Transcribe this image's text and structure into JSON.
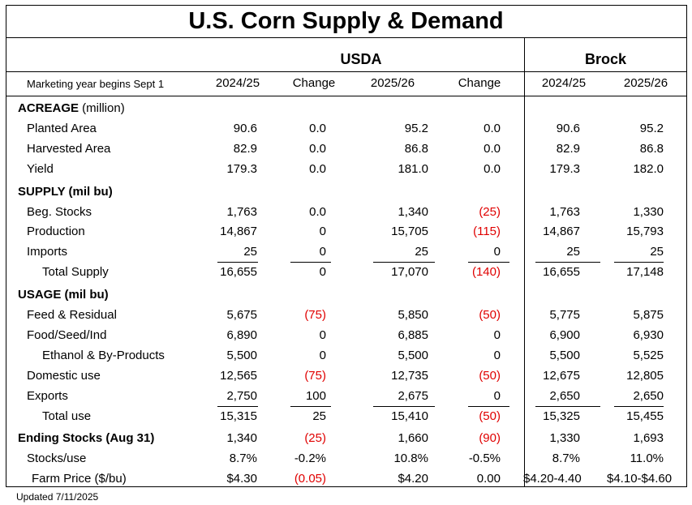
{
  "title": "U.S. Corn Supply & Demand",
  "groups": {
    "usda": "USDA",
    "brock": "Brock"
  },
  "header": {
    "label": "Marketing year begins Sept 1",
    "columns": [
      "2024/25",
      "Change",
      "2025/26",
      "Change",
      "2024/25",
      "2025/26"
    ]
  },
  "rows": [
    {
      "label": "ACREAGE",
      "unit": " (million)",
      "type": "section"
    },
    {
      "label": "Planted Area",
      "type": "item",
      "values": [
        "90.6",
        "0.0",
        "95.2",
        "0.0",
        "90.6",
        "95.2"
      ]
    },
    {
      "label": "Harvested Area",
      "type": "item",
      "values": [
        "82.9",
        "0.0",
        "86.8",
        "0.0",
        "82.9",
        "86.8"
      ]
    },
    {
      "label": "Yield",
      "type": "item",
      "values": [
        "179.3",
        "0.0",
        "181.0",
        "0.0",
        "179.3",
        "182.0"
      ]
    },
    {
      "label": "SUPPLY (mil bu)",
      "unit": "",
      "type": "section"
    },
    {
      "label": "Beg. Stocks",
      "type": "item",
      "values": [
        "1,763",
        "0.0",
        "1,340",
        "(25)",
        "1,763",
        "1,330"
      ]
    },
    {
      "label": "Production",
      "type": "item",
      "values": [
        "14,867",
        "0",
        "15,705",
        "(115)",
        "14,867",
        "15,793"
      ]
    },
    {
      "label": "Imports",
      "type": "item",
      "underline": true,
      "values": [
        "25",
        "0",
        "25",
        "0",
        "25",
        "25"
      ]
    },
    {
      "label": "Total Supply",
      "type": "total",
      "values": [
        "16,655",
        "0",
        "17,070",
        "(140)",
        "16,655",
        "17,148"
      ]
    },
    {
      "label": "USAGE (mil bu)",
      "unit": "",
      "type": "section"
    },
    {
      "label": "Feed & Residual",
      "type": "item",
      "values": [
        "5,675",
        "(75)",
        "5,850",
        "(50)",
        "5,775",
        "5,875"
      ]
    },
    {
      "label": "Food/Seed/Ind",
      "type": "item",
      "values": [
        "6,890",
        "0",
        "6,885",
        "0",
        "6,900",
        "6,930"
      ]
    },
    {
      "label": "Ethanol & By-Products",
      "type": "sub",
      "values": [
        "5,500",
        "0",
        "5,500",
        "0",
        "5,500",
        "5,525"
      ]
    },
    {
      "label": "Domestic use",
      "type": "item",
      "values": [
        "12,565",
        "(75)",
        "12,735",
        "(50)",
        "12,675",
        "12,805"
      ]
    },
    {
      "label": "Exports",
      "type": "item",
      "underline": true,
      "values": [
        "2,750",
        "100",
        "2,675",
        "0",
        "2,650",
        "2,650"
      ]
    },
    {
      "label": "Total use",
      "type": "total",
      "values": [
        "15,315",
        "25",
        "15,410",
        "(50)",
        "15,325",
        "15,455"
      ]
    },
    {
      "label": "Ending Stocks (Aug 31)",
      "unit": "",
      "type": "section",
      "values": [
        "1,340",
        "(25)",
        "1,660",
        "(90)",
        "1,330",
        "1,693"
      ]
    },
    {
      "label": "Stocks/use",
      "type": "item",
      "values": [
        "8.7%",
        "-0.2%",
        "10.8%",
        "-0.5%",
        "8.7%",
        "11.0%"
      ]
    },
    {
      "label": "Farm Price ($/bu)",
      "type": "sub2",
      "values": [
        "$4.30",
        "(0.05)",
        "$4.20",
        "0.00",
        "$4.20-4.40",
        "$4.10-$4.60"
      ]
    }
  ],
  "footer": "Updated 7/11/2025"
}
